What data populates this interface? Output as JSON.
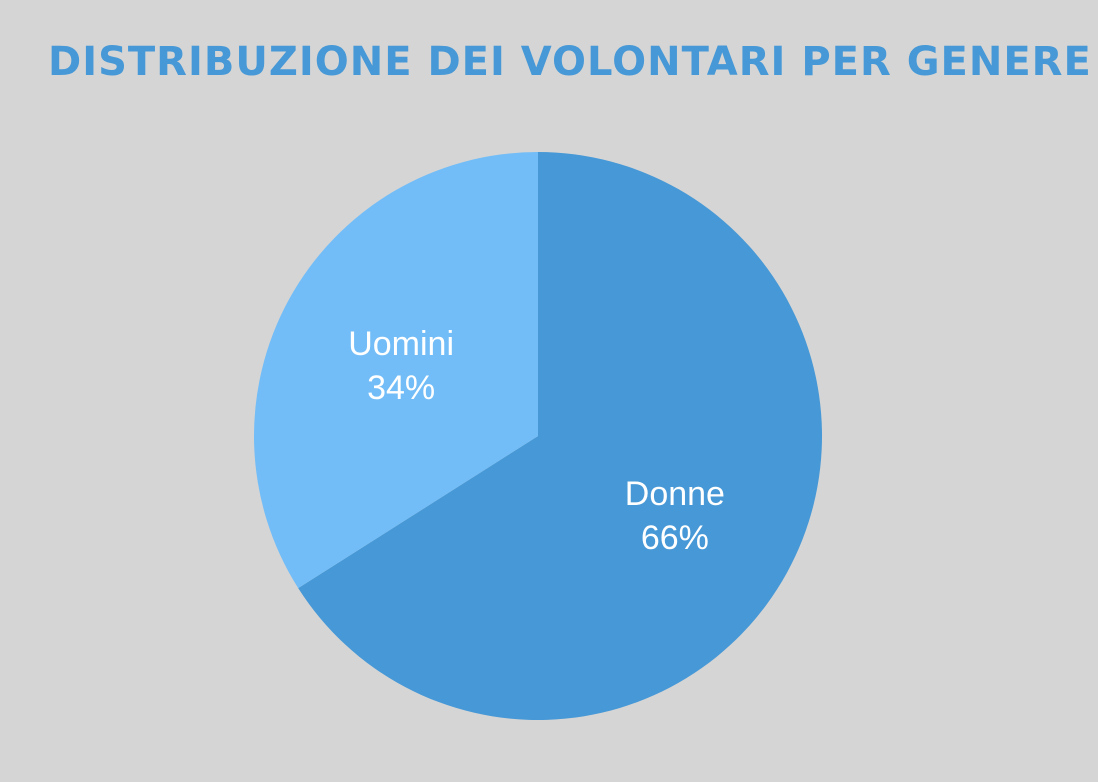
{
  "chart_data": {
    "type": "pie",
    "title": "DISTRIBUZIONE DEI VOLONTARI PER GENERE",
    "slices": [
      {
        "label": "Donne",
        "value": 66,
        "value_label": "66%",
        "color": "#4698d6"
      },
      {
        "label": "Uomini",
        "value": 34,
        "value_label": "34%",
        "color": "#72bdf7"
      }
    ],
    "start": "top",
    "direction": "clockwise",
    "legend": "none",
    "background_color": "#d5d5d5"
  }
}
